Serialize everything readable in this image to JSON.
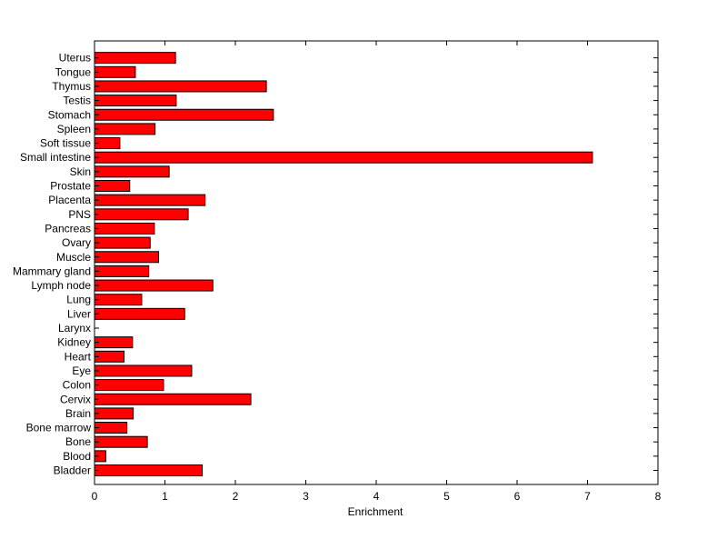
{
  "chart_data": {
    "type": "bar",
    "orientation": "horizontal",
    "title": "",
    "xlabel": "Enrichment",
    "ylabel": "",
    "xlim": [
      0,
      8
    ],
    "xticks": [
      "0",
      "1",
      "2",
      "3",
      "4",
      "5",
      "6",
      "7",
      "8"
    ],
    "grid": false,
    "bar_color": "#ff0000",
    "edge_color": "#000000",
    "categories": [
      "Bladder",
      "Blood",
      "Bone",
      "Bone marrow",
      "Brain",
      "Cervix",
      "Colon",
      "Eye",
      "Heart",
      "Kidney",
      "Larynx",
      "Liver",
      "Lung",
      "Lymph node",
      "Mammary gland",
      "Muscle",
      "Ovary",
      "Pancreas",
      "PNS",
      "Placenta",
      "Prostate",
      "Skin",
      "Small intestine",
      "Soft tissue",
      "Spleen",
      "Stomach",
      "Testis",
      "Thymus",
      "Tongue",
      "Uterus"
    ],
    "values": [
      1.53,
      0.16,
      0.75,
      0.46,
      0.55,
      2.22,
      0.98,
      1.38,
      0.42,
      0.54,
      0.0,
      1.28,
      0.67,
      1.68,
      0.77,
      0.91,
      0.79,
      0.85,
      1.33,
      1.57,
      0.5,
      1.06,
      7.07,
      0.36,
      0.86,
      2.54,
      1.16,
      2.44,
      0.58,
      1.15
    ]
  }
}
